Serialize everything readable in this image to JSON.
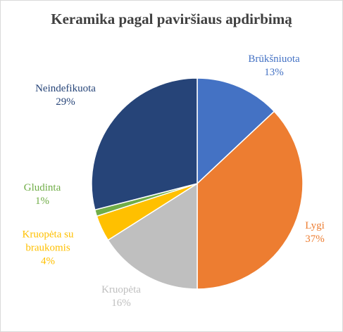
{
  "chart_data": {
    "type": "pie",
    "title": "Keramika pagal paviršiaus apdirbimą",
    "categories": [
      "Brūkšniuota",
      "Lygi",
      "Kruopėta",
      "Kruopėta su braukomis",
      "Gludinta",
      "Neindefikuota"
    ],
    "values": [
      13,
      37,
      16,
      4,
      1,
      29
    ],
    "value_labels": [
      "13%",
      "37%",
      "16%",
      "4%",
      "1%",
      "29%"
    ],
    "colors": [
      "#4472c4",
      "#ed7d31",
      "#bfbfbf",
      "#ffc000",
      "#70ad47",
      "#264478"
    ]
  }
}
